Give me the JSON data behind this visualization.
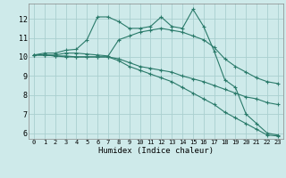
{
  "background_color": "#ceeaea",
  "grid_color": "#aacfcf",
  "line_color": "#2a7a6a",
  "xlabel": "Humidex (Indice chaleur)",
  "xlim": [
    -0.5,
    23.5
  ],
  "ylim": [
    5.7,
    12.8
  ],
  "yticks": [
    6,
    7,
    8,
    9,
    10,
    11,
    12
  ],
  "xticks": [
    0,
    1,
    2,
    3,
    4,
    5,
    6,
    7,
    8,
    9,
    10,
    11,
    12,
    13,
    14,
    15,
    16,
    17,
    18,
    19,
    20,
    21,
    22,
    23
  ],
  "series": [
    {
      "x": [
        0,
        1,
        2,
        3,
        4,
        5,
        6,
        7,
        8,
        9,
        10,
        11,
        12,
        13,
        14,
        15,
        16,
        17,
        18,
        19,
        20,
        21,
        22,
        23
      ],
      "y": [
        10.1,
        10.2,
        10.2,
        10.35,
        10.4,
        10.9,
        12.1,
        12.1,
        11.85,
        11.5,
        11.5,
        11.6,
        12.1,
        11.6,
        11.5,
        12.5,
        11.6,
        10.3,
        8.8,
        8.4,
        7.0,
        6.5,
        6.0,
        5.9
      ]
    },
    {
      "x": [
        0,
        1,
        2,
        3,
        4,
        5,
        6,
        7,
        8,
        9,
        10,
        11,
        12,
        13,
        14,
        15,
        16,
        17,
        18,
        19,
        20,
        21,
        22,
        23
      ],
      "y": [
        10.1,
        10.1,
        10.1,
        10.2,
        10.2,
        10.15,
        10.1,
        10.05,
        10.9,
        11.1,
        11.3,
        11.4,
        11.5,
        11.4,
        11.3,
        11.1,
        10.9,
        10.5,
        9.9,
        9.5,
        9.2,
        8.9,
        8.7,
        8.6
      ]
    },
    {
      "x": [
        0,
        1,
        2,
        3,
        4,
        5,
        6,
        7,
        8,
        9,
        10,
        11,
        12,
        13,
        14,
        15,
        16,
        17,
        18,
        19,
        20,
        21,
        22,
        23
      ],
      "y": [
        10.1,
        10.1,
        10.05,
        10.05,
        10.0,
        10.0,
        10.0,
        10.0,
        9.9,
        9.7,
        9.5,
        9.4,
        9.3,
        9.2,
        9.0,
        8.85,
        8.7,
        8.5,
        8.3,
        8.1,
        7.9,
        7.8,
        7.6,
        7.5
      ]
    },
    {
      "x": [
        0,
        1,
        2,
        3,
        4,
        5,
        6,
        7,
        8,
        9,
        10,
        11,
        12,
        13,
        14,
        15,
        16,
        17,
        18,
        19,
        20,
        21,
        22,
        23
      ],
      "y": [
        10.1,
        10.1,
        10.05,
        10.0,
        10.0,
        10.0,
        10.0,
        10.0,
        9.8,
        9.5,
        9.3,
        9.1,
        8.9,
        8.7,
        8.4,
        8.1,
        7.8,
        7.5,
        7.1,
        6.8,
        6.5,
        6.2,
        5.9,
        5.85
      ]
    }
  ]
}
